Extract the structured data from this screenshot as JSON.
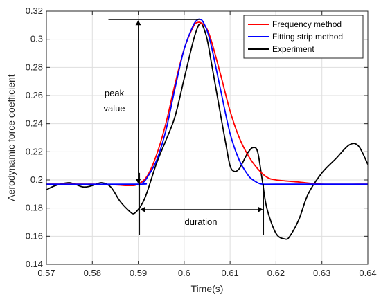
{
  "chart_data": {
    "type": "line",
    "title": "",
    "xlabel": "Time(s)",
    "ylabel": "Aerodynamic force coefficient",
    "xlim": [
      0.57,
      0.64
    ],
    "ylim": [
      0.14,
      0.32
    ],
    "xticks": [
      0.57,
      0.58,
      0.59,
      0.6,
      0.61,
      0.62,
      0.63,
      0.64
    ],
    "xtick_labels": [
      "0.57",
      "0.58",
      "0.59",
      "0.6",
      "0.61",
      "0.62",
      "0.63",
      "0.64"
    ],
    "yticks": [
      0.14,
      0.16,
      0.18,
      0.2,
      0.22,
      0.24,
      0.26,
      0.28,
      0.3,
      0.32
    ],
    "ytick_labels": [
      "0.14",
      "0.16",
      "0.18",
      "0.2",
      "0.22",
      "0.24",
      "0.26",
      "0.28",
      "0.3",
      "0.32"
    ],
    "grid": true,
    "legend_position": "top-right",
    "series": [
      {
        "name": "Frequency method",
        "color": "#ff0000",
        "x": [
          0.57,
          0.58,
          0.585,
          0.588,
          0.59,
          0.592,
          0.594,
          0.596,
          0.598,
          0.6,
          0.602,
          0.603,
          0.604,
          0.605,
          0.606,
          0.608,
          0.61,
          0.612,
          0.614,
          0.616,
          0.618,
          0.62,
          0.625,
          0.63,
          0.64
        ],
        "y": [
          0.197,
          0.197,
          0.1965,
          0.196,
          0.197,
          0.203,
          0.218,
          0.24,
          0.268,
          0.293,
          0.309,
          0.312,
          0.311,
          0.307,
          0.298,
          0.274,
          0.249,
          0.23,
          0.217,
          0.208,
          0.202,
          0.2,
          0.1985,
          0.197,
          0.197
        ]
      },
      {
        "name": "Fitting strip method",
        "color": "#0000ff",
        "x": [
          0.57,
          0.59,
          0.591,
          0.592,
          0.594,
          0.596,
          0.598,
          0.6,
          0.602,
          0.603,
          0.6035,
          0.604,
          0.605,
          0.606,
          0.608,
          0.61,
          0.612,
          0.614,
          0.615,
          0.616,
          0.617,
          0.62,
          0.64
        ],
        "y": [
          0.197,
          0.197,
          0.198,
          0.202,
          0.214,
          0.235,
          0.265,
          0.293,
          0.31,
          0.314,
          0.314,
          0.313,
          0.306,
          0.294,
          0.263,
          0.233,
          0.214,
          0.203,
          0.2,
          0.198,
          0.197,
          0.197,
          0.197
        ]
      },
      {
        "name": "Experiment",
        "color": "#000000",
        "x": [
          0.57,
          0.572,
          0.575,
          0.578,
          0.58,
          0.582,
          0.584,
          0.586,
          0.588,
          0.589,
          0.59,
          0.591,
          0.592,
          0.594,
          0.596,
          0.598,
          0.6,
          0.602,
          0.603,
          0.6035,
          0.604,
          0.605,
          0.606,
          0.608,
          0.609,
          0.61,
          0.611,
          0.612,
          0.613,
          0.614,
          0.615,
          0.616,
          0.617,
          0.618,
          0.62,
          0.622,
          0.623,
          0.625,
          0.627,
          0.63,
          0.633,
          0.636,
          0.638,
          0.64
        ],
        "y": [
          0.193,
          0.196,
          0.198,
          0.195,
          0.196,
          0.198,
          0.195,
          0.185,
          0.178,
          0.176,
          0.179,
          0.184,
          0.192,
          0.212,
          0.228,
          0.245,
          0.272,
          0.299,
          0.309,
          0.311,
          0.31,
          0.3,
          0.282,
          0.245,
          0.227,
          0.21,
          0.206,
          0.208,
          0.214,
          0.22,
          0.223,
          0.22,
          0.2,
          0.18,
          0.162,
          0.158,
          0.16,
          0.172,
          0.19,
          0.205,
          0.215,
          0.225,
          0.224,
          0.211
        ]
      }
    ],
    "annotations": {
      "peak_label_line1": "peak",
      "peak_label_line2": "value",
      "duration_label": "duration",
      "peak_value_from": 0.197,
      "peak_value_to": 0.314,
      "peak_arrow_x": 0.59,
      "duration_from": 0.5903,
      "duration_to": 0.6173,
      "duration_y": 0.179
    }
  }
}
